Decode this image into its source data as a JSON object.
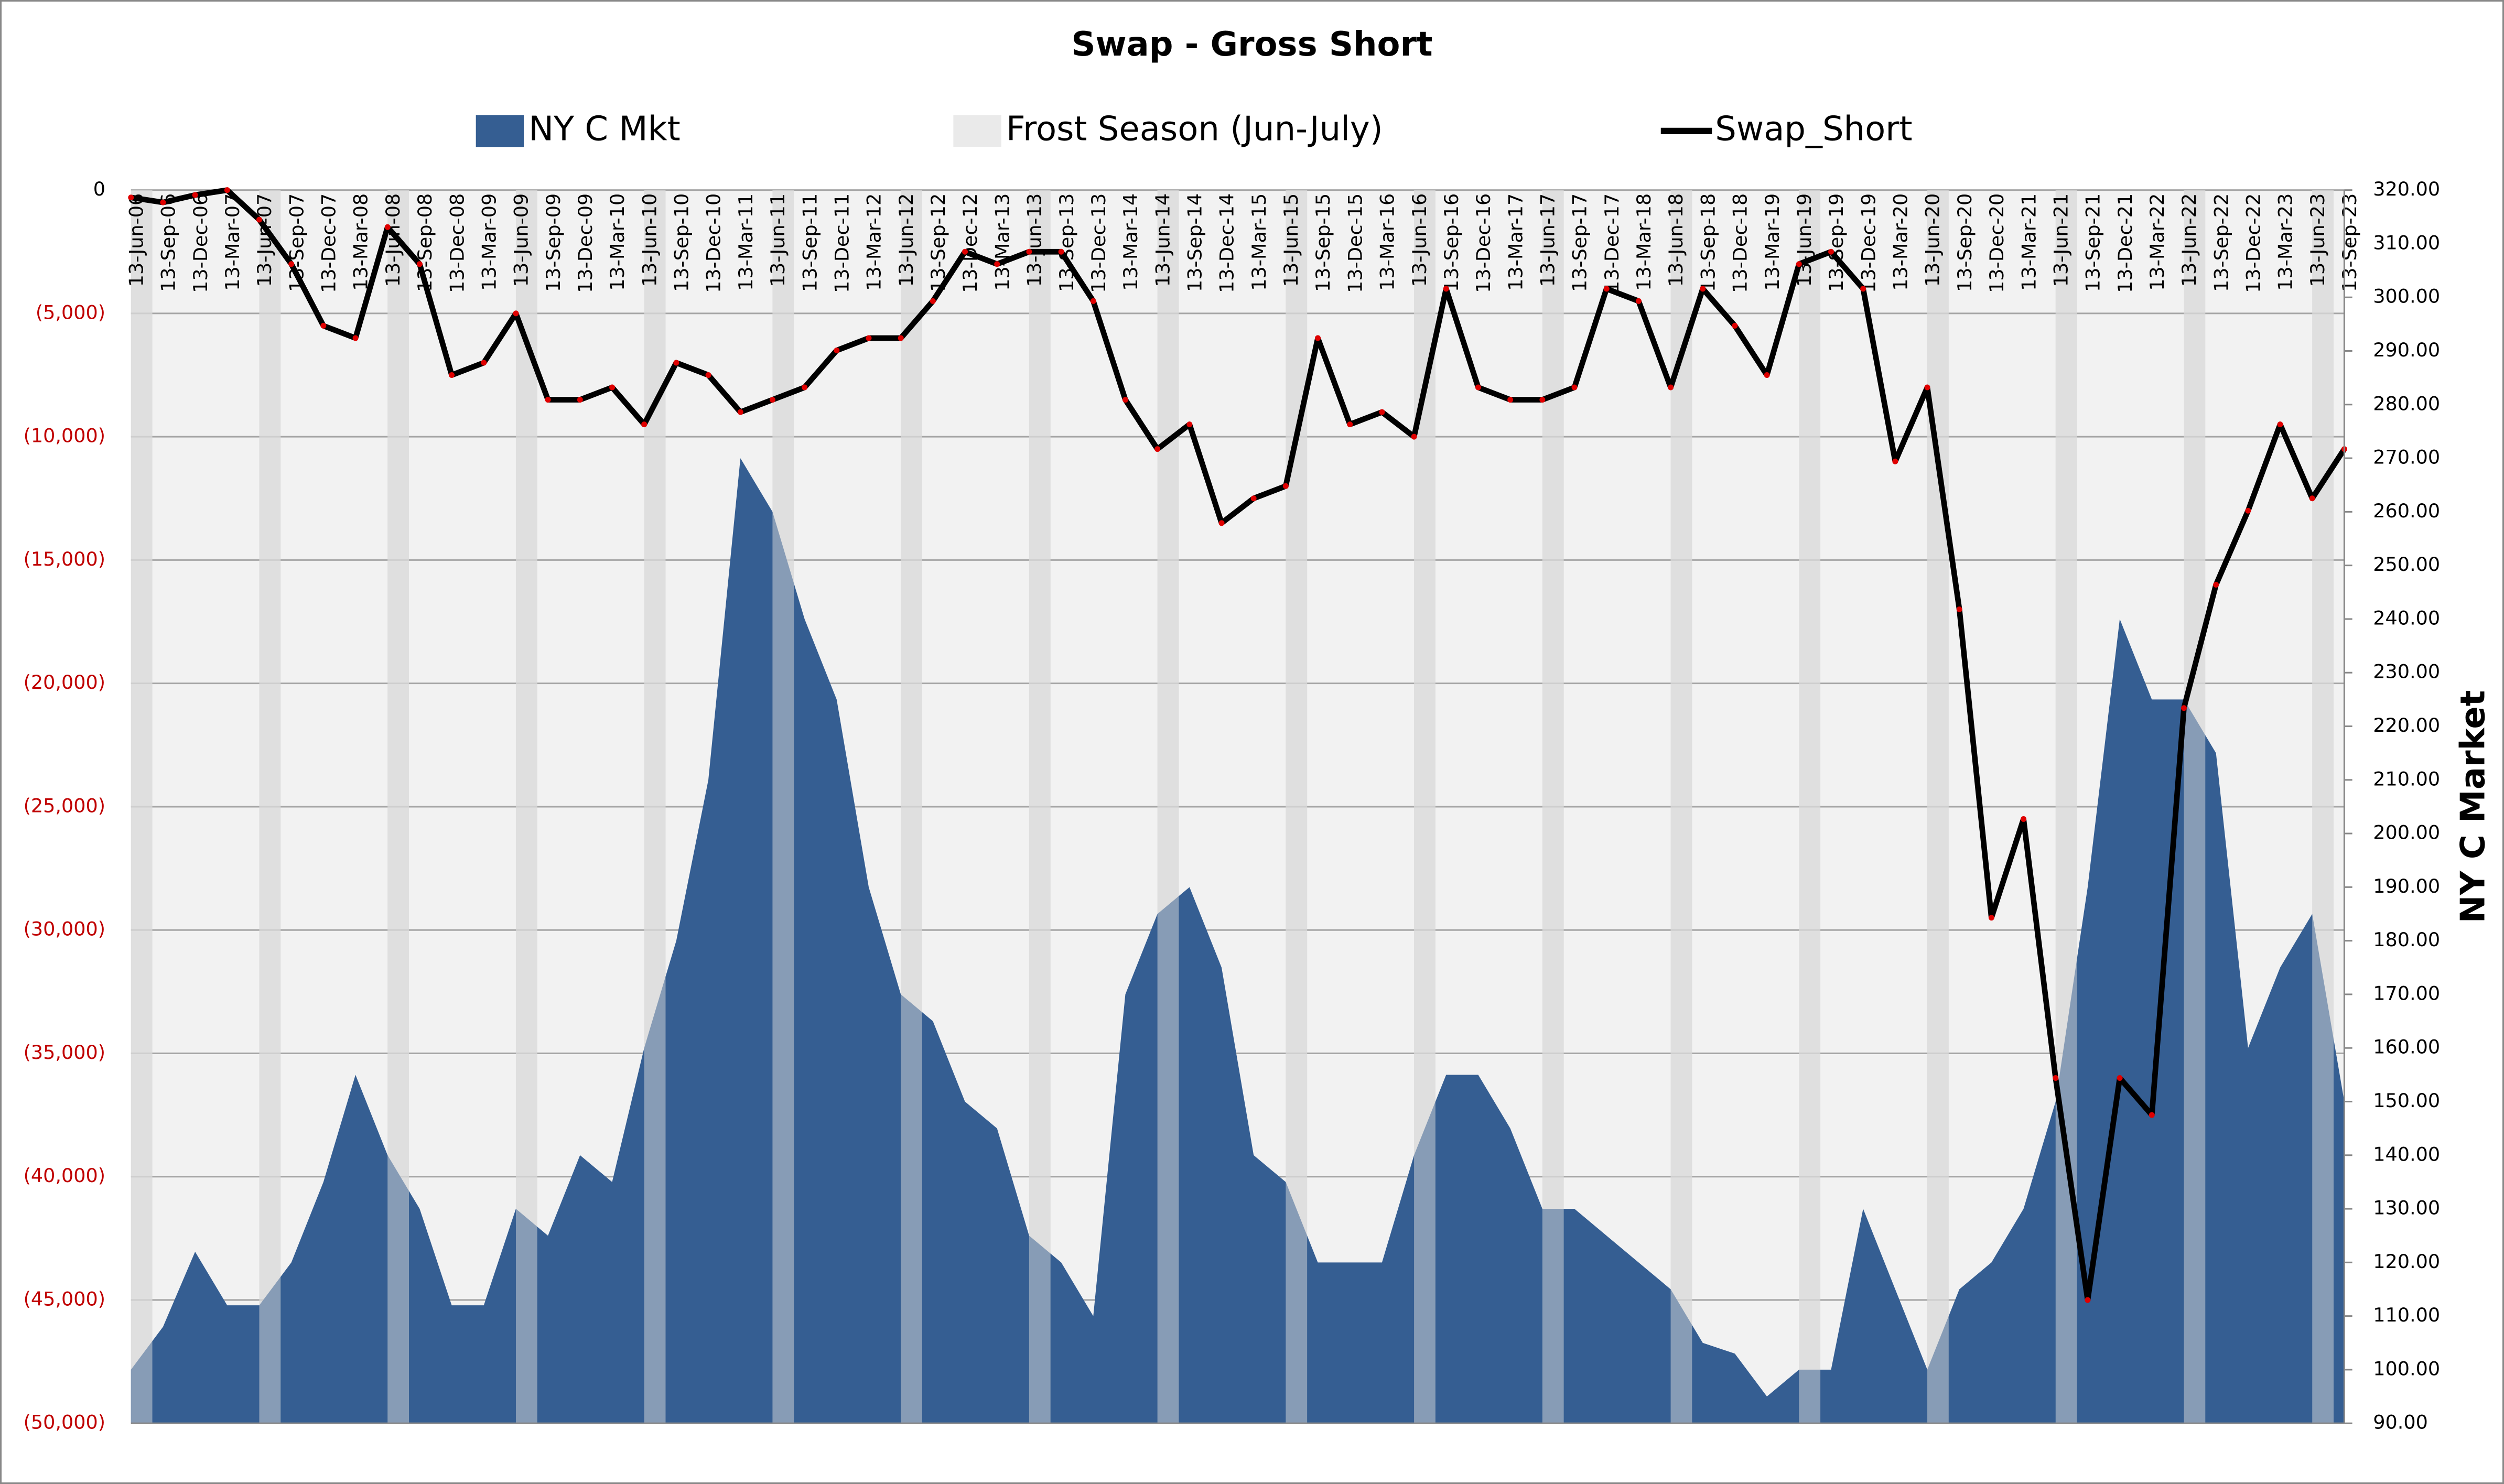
{
  "chart_data": {
    "type": "combo",
    "title": "Swap - Gross Short",
    "y2_label": "NY C Market",
    "categories": [
      "13-Jun-06",
      "13-Sep-06",
      "13-Dec-06",
      "13-Mar-07",
      "13-Jun-07",
      "13-Sep-07",
      "13-Dec-07",
      "13-Mar-08",
      "13-Jun-08",
      "13-Sep-08",
      "13-Dec-08",
      "13-Mar-09",
      "13-Jun-09",
      "13-Sep-09",
      "13-Dec-09",
      "13-Mar-10",
      "13-Jun-10",
      "13-Sep-10",
      "13-Dec-10",
      "13-Mar-11",
      "13-Jun-11",
      "13-Sep-11",
      "13-Dec-11",
      "13-Mar-12",
      "13-Jun-12",
      "13-Sep-12",
      "13-Dec-12",
      "13-Mar-13",
      "13-Jun-13",
      "13-Sep-13",
      "13-Dec-13",
      "13-Mar-14",
      "13-Jun-14",
      "13-Sep-14",
      "13-Dec-14",
      "13-Mar-15",
      "13-Jun-15",
      "13-Sep-15",
      "13-Dec-15",
      "13-Mar-16",
      "13-Jun-16",
      "13-Sep-16",
      "13-Dec-16",
      "13-Mar-17",
      "13-Jun-17",
      "13-Sep-17",
      "13-Dec-17",
      "13-Mar-18",
      "13-Jun-18",
      "13-Sep-18",
      "13-Dec-18",
      "13-Mar-19",
      "13-Jun-19",
      "13-Sep-19",
      "13-Dec-19",
      "13-Mar-20",
      "13-Jun-20",
      "13-Sep-20",
      "13-Dec-20",
      "13-Mar-21",
      "13-Jun-21",
      "13-Sep-21",
      "13-Dec-21",
      "13-Mar-22",
      "13-Jun-22",
      "13-Sep-22",
      "13-Dec-22",
      "13-Mar-23",
      "13-Jun-23",
      "13-Sep-23"
    ],
    "series": [
      {
        "name": "NY C Mkt",
        "type": "area",
        "axis": "y2",
        "color": "#355e92",
        "values": [
          100,
          108,
          122,
          112,
          112,
          120,
          135,
          155,
          140,
          130,
          112,
          112,
          130,
          125,
          140,
          135,
          160,
          180,
          210,
          270,
          260,
          240,
          225,
          190,
          170,
          165,
          150,
          145,
          125,
          120,
          110,
          170,
          185,
          190,
          175,
          140,
          135,
          120,
          120,
          120,
          140,
          155,
          155,
          145,
          130,
          130,
          125,
          120,
          115,
          105,
          103,
          95,
          100,
          100,
          130,
          115,
          100,
          115,
          120,
          130,
          150,
          190,
          240,
          225,
          225,
          215,
          160,
          175,
          185,
          150
        ]
      },
      {
        "name": "Frost Season (Jun-July)",
        "type": "band",
        "axis": "y2",
        "color": "#d9d9d9",
        "values": [
          320,
          null,
          null,
          null,
          320,
          null,
          null,
          null,
          320,
          null,
          null,
          null,
          320,
          null,
          null,
          null,
          320,
          null,
          null,
          null,
          320,
          null,
          null,
          null,
          320,
          null,
          null,
          null,
          320,
          null,
          null,
          null,
          320,
          null,
          null,
          null,
          320,
          null,
          null,
          null,
          320,
          null,
          null,
          null,
          320,
          null,
          null,
          null,
          320,
          null,
          null,
          null,
          320,
          null,
          null,
          null,
          320,
          null,
          null,
          null,
          320,
          null,
          null,
          null,
          320,
          null,
          null,
          null,
          320,
          null
        ]
      },
      {
        "name": "Swap_Short",
        "type": "line",
        "color": "#000000",
        "marker_color": "#e00000",
        "values": [
          -300,
          -500,
          -200,
          0,
          -1200,
          -3000,
          -5500,
          -6000,
          -1500,
          -3000,
          -7500,
          -7000,
          -5000,
          -8500,
          -8500,
          -8000,
          -9500,
          -7000,
          -7500,
          -9000,
          -8500,
          -8000,
          -6500,
          -6000,
          -6000,
          -4500,
          -2500,
          -3000,
          -2500,
          -2500,
          -4500,
          -8500,
          -10500,
          -9500,
          -13500,
          -12500,
          -12000,
          -6000,
          -9500,
          -9000,
          -10000,
          -4000,
          -8000,
          -8500,
          -8500,
          -8000,
          -4000,
          -4500,
          -8000,
          -4000,
          -5500,
          -7500,
          -3000,
          -2500,
          -4000,
          -11000,
          -8000,
          -17000,
          -29500,
          -25500,
          -36000,
          -45000,
          -36000,
          -37500,
          -21000,
          -16000,
          -13000,
          -9500,
          -12500,
          -10500
        ]
      }
    ],
    "ylim": [
      -50000,
      0
    ],
    "yticks": [
      {
        "value": 0,
        "label": "0"
      },
      {
        "value": -5000,
        "label": "(5,000)"
      },
      {
        "value": -10000,
        "label": "(10,000)"
      },
      {
        "value": -15000,
        "label": "(15,000)"
      },
      {
        "value": -20000,
        "label": "(20,000)"
      },
      {
        "value": -25000,
        "label": "(25,000)"
      },
      {
        "value": -30000,
        "label": "(30,000)"
      },
      {
        "value": -35000,
        "label": "(35,000)"
      },
      {
        "value": -40000,
        "label": "(40,000)"
      },
      {
        "value": -45000,
        "label": "(45,000)"
      },
      {
        "value": -50000,
        "label": "(50,000)"
      }
    ],
    "negative_tick_color": "#c00000",
    "y2lim": [
      90,
      320
    ],
    "y2ticks": [
      {
        "value": 90,
        "label": "90.00"
      },
      {
        "value": 100,
        "label": "100.00"
      },
      {
        "value": 110,
        "label": "110.00"
      },
      {
        "value": 120,
        "label": "120.00"
      },
      {
        "value": 130,
        "label": "130.00"
      },
      {
        "value": 140,
        "label": "140.00"
      },
      {
        "value": 150,
        "label": "150.00"
      },
      {
        "value": 160,
        "label": "160.00"
      },
      {
        "value": 170,
        "label": "170.00"
      },
      {
        "value": 180,
        "label": "180.00"
      },
      {
        "value": 190,
        "label": "190.00"
      },
      {
        "value": 200,
        "label": "200.00"
      },
      {
        "value": 210,
        "label": "210.00"
      },
      {
        "value": 220,
        "label": "220.00"
      },
      {
        "value": 230,
        "label": "230.00"
      },
      {
        "value": 240,
        "label": "240.00"
      },
      {
        "value": 250,
        "label": "250.00"
      },
      {
        "value": 260,
        "label": "260.00"
      },
      {
        "value": 270,
        "label": "270.00"
      },
      {
        "value": 280,
        "label": "280.00"
      },
      {
        "value": 290,
        "label": "290.00"
      },
      {
        "value": 300,
        "label": "300.00"
      },
      {
        "value": 310,
        "label": "310.00"
      },
      {
        "value": 320,
        "label": "320.00"
      }
    ],
    "grid": true
  }
}
